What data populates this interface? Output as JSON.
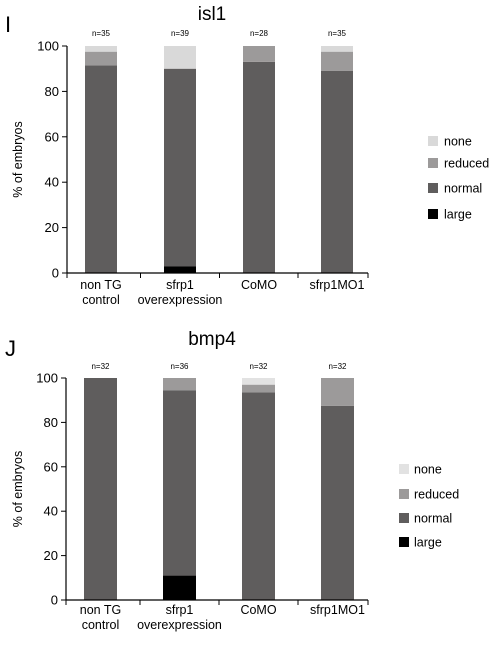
{
  "chart_data": [
    {
      "type": "bar",
      "stacked": true,
      "panel": "I",
      "title": "isl1",
      "ylabel": "% of embryos",
      "ylim": [
        0,
        100
      ],
      "yticks": [
        0,
        20,
        40,
        60,
        80,
        100
      ],
      "categories": [
        {
          "lines": [
            "non TG",
            "control"
          ],
          "n": "n=35"
        },
        {
          "lines": [
            "sfrp1",
            "overexpression"
          ],
          "n": "n=39"
        },
        {
          "lines": [
            "CoMO"
          ],
          "n": "n=28"
        },
        {
          "lines": [
            "sfrp1MO1"
          ],
          "n": "n=35"
        }
      ],
      "series": [
        {
          "name": "large",
          "color": "#000000",
          "values": [
            0,
            3,
            0,
            0
          ]
        },
        {
          "name": "normal",
          "color": "#5f5d5d",
          "values": [
            91.5,
            87,
            93,
            89
          ]
        },
        {
          "name": "reduced",
          "color": "#9c9a9a",
          "values": [
            6,
            0,
            7,
            8.5
          ]
        },
        {
          "name": "none",
          "color": "#d9d9d9",
          "values": [
            2.5,
            10,
            0,
            2.5
          ]
        }
      ],
      "legend": {
        "placement": "right",
        "order": [
          "none",
          "reduced",
          "normal",
          "large"
        ]
      }
    },
    {
      "type": "bar",
      "stacked": true,
      "panel": "J",
      "title": "bmp4",
      "ylabel": "% of embryos",
      "ylim": [
        0,
        100
      ],
      "yticks": [
        0,
        20,
        40,
        60,
        80,
        100
      ],
      "categories": [
        {
          "lines": [
            "non TG",
            "control"
          ],
          "n": "n=32"
        },
        {
          "lines": [
            "sfrp1",
            "overexpression"
          ],
          "n": "n=36"
        },
        {
          "lines": [
            "CoMO"
          ],
          "n": "n=32"
        },
        {
          "lines": [
            "sfrp1MO1"
          ],
          "n": "n=32"
        }
      ],
      "series": [
        {
          "name": "large",
          "color": "#000000",
          "values": [
            0,
            11,
            0,
            0
          ]
        },
        {
          "name": "normal",
          "color": "#5f5d5d",
          "values": [
            100,
            83.5,
            93.5,
            87.5
          ]
        },
        {
          "name": "reduced",
          "color": "#9c9a9a",
          "values": [
            0,
            5.5,
            3.5,
            12.5
          ]
        },
        {
          "name": "none",
          "color": "#e2e2e2",
          "values": [
            0,
            0,
            3,
            0
          ]
        }
      ],
      "legend": {
        "placement": "right",
        "order": [
          "none",
          "reduced",
          "normal",
          "large"
        ]
      }
    }
  ]
}
